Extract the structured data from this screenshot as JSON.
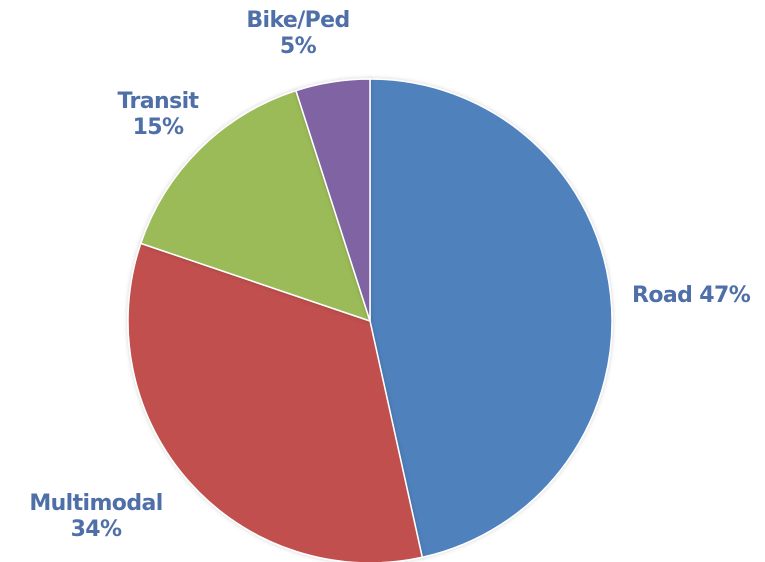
{
  "chart_data": {
    "type": "pie",
    "title": "",
    "slices": [
      {
        "name": "Road",
        "value": 47,
        "percent_label": "47%",
        "color": "#4f81bd"
      },
      {
        "name": "Multimodal",
        "value": 34,
        "percent_label": "34%",
        "color": "#c0504d"
      },
      {
        "name": "Transit",
        "value": 15,
        "percent_label": "15%",
        "color": "#9bbb59"
      },
      {
        "name": "Bike/Ped",
        "value": 5,
        "percent_label": "5%",
        "color": "#8064a2"
      }
    ],
    "start_angle_deg": 0,
    "direction": "clockwise",
    "label_color": "#4f6fa8",
    "legend": "none"
  }
}
